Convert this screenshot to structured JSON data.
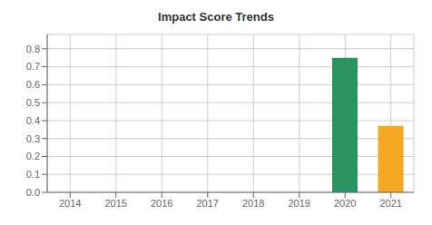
{
  "chart_data": {
    "type": "bar",
    "title": "Impact Score Trends",
    "categories": [
      "2014",
      "2015",
      "2016",
      "2017",
      "2018",
      "2019",
      "2020",
      "2021"
    ],
    "values": [
      0,
      0,
      0,
      0,
      0,
      0,
      0.75,
      0.37
    ],
    "colors": [
      "#2a9461",
      "#2a9461",
      "#2a9461",
      "#2a9461",
      "#2a9461",
      "#2a9461",
      "#2a9461",
      "#f5a623"
    ],
    "ylim": [
      0,
      0.88
    ],
    "yticks": [
      {
        "value": 0,
        "label": "0.0"
      },
      0.1,
      0.2,
      0.3,
      0.4,
      0.5,
      0.6,
      0.7,
      0.8
    ],
    "grid": true
  }
}
